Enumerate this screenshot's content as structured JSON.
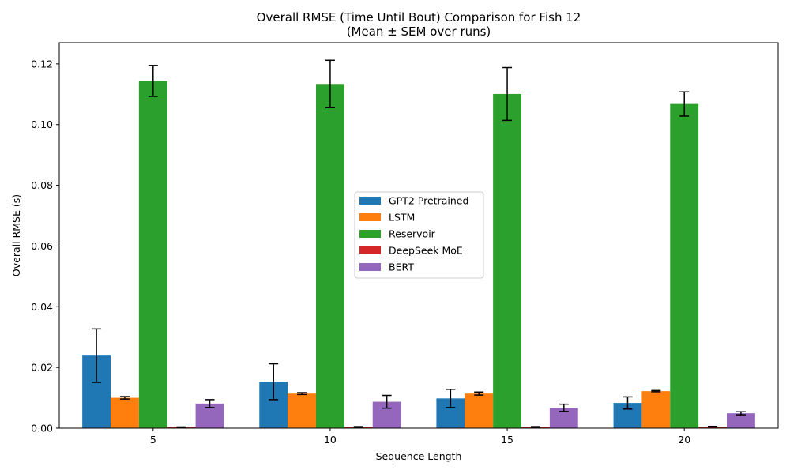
{
  "chart_data": {
    "type": "bar",
    "title_line1": "Overall RMSE (Time Until Bout) Comparison for Fish 12",
    "title_line2": "(Mean ± SEM over runs)",
    "xlabel": "Sequence Length",
    "ylabel": "Overall RMSE (s)",
    "categories": [
      "5",
      "10",
      "15",
      "20"
    ],
    "ylim": [
      0,
      0.127
    ],
    "yticks": [
      "0.00",
      "0.02",
      "0.04",
      "0.06",
      "0.08",
      "0.10",
      "0.12"
    ],
    "ytick_values": [
      0,
      0.02,
      0.04,
      0.06,
      0.08,
      0.1,
      0.12
    ],
    "legend_position": "center",
    "series": [
      {
        "name": "GPT2 Pretrained",
        "color": "#1f77b4",
        "values": [
          0.0239,
          0.0153,
          0.0098,
          0.0083
        ],
        "errors": [
          0.0088,
          0.0059,
          0.003,
          0.002
        ]
      },
      {
        "name": "LSTM",
        "color": "#ff7f0e",
        "values": [
          0.01,
          0.0114,
          0.0114,
          0.0122
        ],
        "errors": [
          0.0004,
          0.0003,
          0.0005,
          0.0002
        ]
      },
      {
        "name": "Reservoir",
        "color": "#2ca02c",
        "values": [
          0.1144,
          0.1134,
          0.1101,
          0.1068
        ],
        "errors": [
          0.0051,
          0.0078,
          0.0087,
          0.004
        ]
      },
      {
        "name": "DeepSeek MoE",
        "color": "#d62728",
        "values": [
          0.0003,
          0.0004,
          0.0004,
          0.0005
        ],
        "errors": [
          0.0001,
          0.0001,
          0.0001,
          0.0001
        ]
      },
      {
        "name": "BERT",
        "color": "#9467bd",
        "values": [
          0.0081,
          0.0087,
          0.0067,
          0.0049
        ],
        "errors": [
          0.0013,
          0.0021,
          0.0012,
          0.0005
        ]
      }
    ]
  }
}
